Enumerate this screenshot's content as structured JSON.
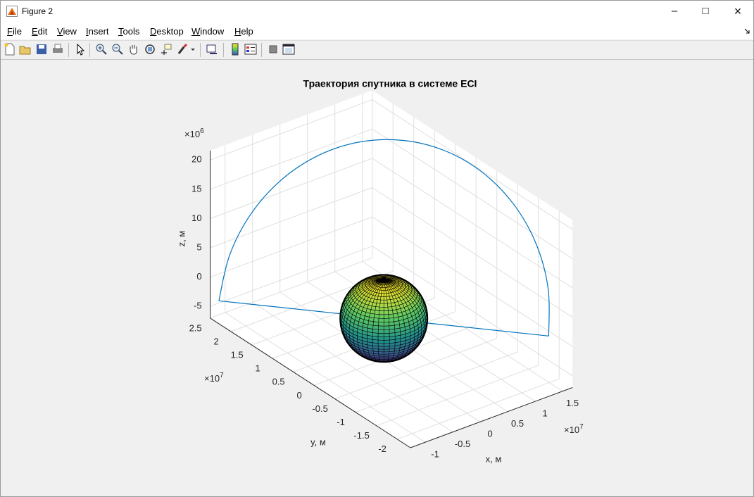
{
  "window": {
    "title": "Figure 2"
  },
  "menu": [
    "File",
    "Edit",
    "View",
    "Insert",
    "Tools",
    "Desktop",
    "Window",
    "Help"
  ],
  "chart_data": {
    "type": "line3d",
    "title": "Траектория спутника в системе ECI",
    "x_label": "x, м",
    "y_label": "y, м",
    "z_label": "z, м",
    "multiplier_base": "×10",
    "x_exponent": "7",
    "y_exponent": "7",
    "z_exponent": "6",
    "xlim": [
      -1.27,
      1.68
    ],
    "ylim": [
      -2.32,
      2.5
    ],
    "zlim": [
      -7,
      21.6
    ],
    "xticks": [
      -1,
      -0.5,
      0,
      0.5,
      1,
      1.5
    ],
    "yticks": [
      -2,
      -1.5,
      -1,
      -0.5,
      0,
      0.5,
      1,
      1.5,
      2,
      2.5
    ],
    "zticks": [
      -5,
      0,
      5,
      10,
      15,
      20
    ],
    "grid": true,
    "series": [
      {
        "color": "#0072bd",
        "x": [
          -1.07,
          -0.775,
          -0.427,
          -0.049,
          0.331,
          0.689,
          1.0,
          1.243,
          1.401,
          1.463,
          1.427,
          1.293,
          1.07
        ],
        "y": [
          2.556,
          2.689,
          2.639,
          2.408,
          2.014,
          1.483,
          0.85,
          0.159,
          -0.542,
          -1.206,
          -1.789,
          -2.249,
          -2.556
        ],
        "z": [
          -5,
          1.13,
          7.17,
          12.73,
          17.42,
          20.92,
          23,
          23.52,
          22.42,
          19.8,
          15.83,
          10.79,
          5
        ]
      }
    ]
  }
}
